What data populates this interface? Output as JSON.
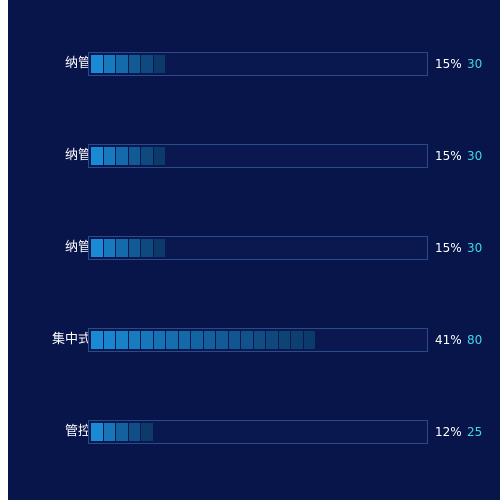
{
  "colors": {
    "background": "#08154a",
    "track_border": "#2a4a8c",
    "segment_start": "#1a8ad4",
    "segment_end": "#0c3a6a",
    "value_text": "#3fd6e8",
    "label_text": "#ffffff"
  },
  "rows": [
    {
      "label": "纳管",
      "percent": "15%",
      "value": "30",
      "fill": 0.15
    },
    {
      "label": "纳管",
      "percent": "15%",
      "value": "30",
      "fill": 0.15
    },
    {
      "label": "纳管",
      "percent": "15%",
      "value": "30",
      "fill": 0.15
    },
    {
      "label": "集中式",
      "percent": "41%",
      "value": "80",
      "fill": 0.41
    },
    {
      "label": "管控",
      "percent": "12%",
      "value": "25",
      "fill": 0.12
    }
  ]
}
